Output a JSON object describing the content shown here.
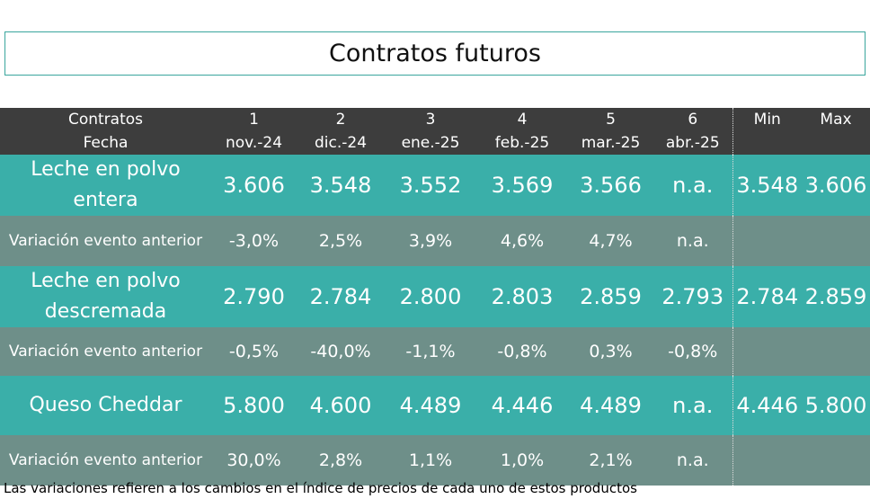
{
  "title": "Contratos futuros",
  "header": {
    "label_top": "Contratos",
    "label_bottom": "Fecha",
    "columns": [
      {
        "num": "1",
        "date": "nov.-24"
      },
      {
        "num": "2",
        "date": "dic.-24"
      },
      {
        "num": "3",
        "date": "ene.-25"
      },
      {
        "num": "4",
        "date": "feb.-25"
      },
      {
        "num": "5",
        "date": "mar.-25"
      },
      {
        "num": "6",
        "date": "abr.-25"
      }
    ],
    "min": "Min",
    "max": "Max"
  },
  "rows": [
    {
      "product_line1": "Leche en polvo",
      "product_line2": "entera",
      "values": [
        "3.606",
        "3.548",
        "3.552",
        "3.569",
        "3.566",
        "n.a."
      ],
      "min": "3.548",
      "max": "3.606",
      "variation_label": "Variación evento anterior",
      "variations": [
        "-3,0%",
        "2,5%",
        "3,9%",
        "4,6%",
        "4,7%",
        "n.a."
      ]
    },
    {
      "product_line1": "Leche en polvo",
      "product_line2": "descremada",
      "values": [
        "2.790",
        "2.784",
        "2.800",
        "2.803",
        "2.859",
        "2.793"
      ],
      "min": "2.784",
      "max": "2.859",
      "variation_label": "Variación evento anterior",
      "variations": [
        "-0,5%",
        "-40,0%",
        "-1,1%",
        "-0,8%",
        "0,3%",
        "-0,8%"
      ]
    },
    {
      "product_line1": "Queso Cheddar",
      "product_line2": "",
      "values": [
        "5.800",
        "4.600",
        "4.489",
        "4.446",
        "4.489",
        "n.a."
      ],
      "min": "4.446",
      "max": "5.800",
      "variation_label": "Variación evento anterior",
      "variations": [
        "30,0%",
        "2,8%",
        "1,1%",
        "1,0%",
        "2,1%",
        "n.a."
      ]
    }
  ],
  "footnote": "Las variaciones refieren a los cambios en el índice de precios de cada uno de estos productos"
}
